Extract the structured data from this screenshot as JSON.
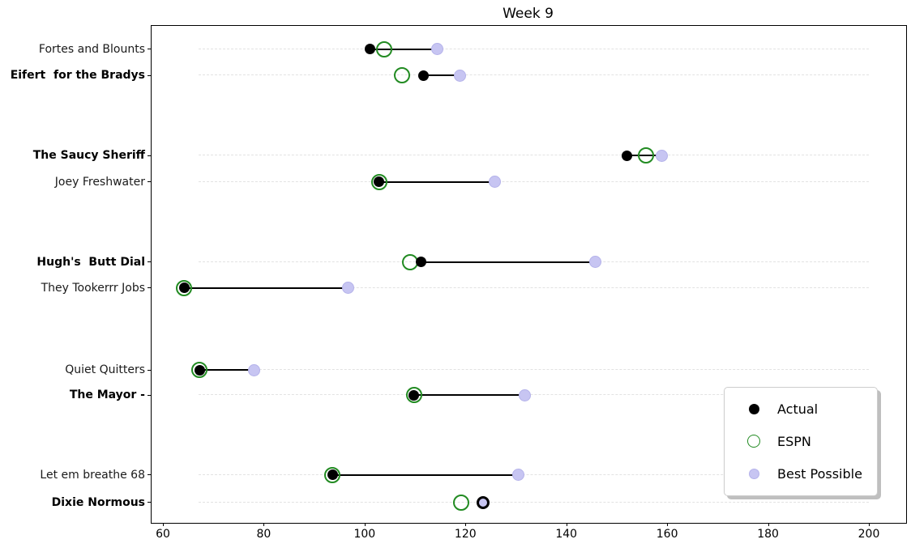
{
  "title": "Week 9",
  "chart_data": {
    "type": "scatter",
    "subtype": "dumbbell-dot-plot",
    "title": "Week 9",
    "orientation": "horizontal",
    "categories": [
      "Fortes and Blounts",
      "Eifert  for the Bradys",
      "The Saucy Sheriff",
      "Joey Freshwater",
      "Hugh's  Butt Dial",
      "They Tookerrr Jobs",
      "Quiet Quitters",
      "The Mayor -",
      "Let em breathe 68",
      "Dixie Normous"
    ],
    "bold_categories": [
      false,
      true,
      true,
      false,
      true,
      false,
      false,
      true,
      false,
      true
    ],
    "series": [
      {
        "name": "Actual",
        "marker": "filled-circle",
        "color": "#000000",
        "values": [
          101.1,
          111.7,
          152.0,
          102.9,
          111.2,
          64.2,
          67.3,
          109.8,
          93.6,
          123.5
        ]
      },
      {
        "name": "ESPN",
        "marker": "open-circle",
        "color": "#228B22",
        "values": [
          103.9,
          107.4,
          155.8,
          102.9,
          109.1,
          64.2,
          67.3,
          109.8,
          93.6,
          119.1
        ]
      },
      {
        "name": "Best Possible",
        "marker": "filled-circle",
        "color": "#c7c5f2",
        "values": [
          114.4,
          118.9,
          159.0,
          125.9,
          145.8,
          96.8,
          78.1,
          131.8,
          130.5,
          123.5
        ]
      }
    ],
    "connector": "black line from Actual to Best Possible",
    "x_axis": {
      "ticks": [
        60,
        80,
        100,
        120,
        140,
        160,
        180,
        200
      ],
      "range": [
        57.6,
        207.2
      ]
    },
    "grid": "horizontal-dashed",
    "grid_span": [
      67,
      200
    ],
    "legend_position": "lower-right"
  },
  "legend": {
    "items": [
      {
        "label": "Actual"
      },
      {
        "label": "ESPN"
      },
      {
        "label": "Best Possible"
      }
    ]
  },
  "colors": {
    "actual": "#000000",
    "espn": "#228B22",
    "best_possible": "#c7c5f2",
    "gridline": "#e2e2e2"
  }
}
